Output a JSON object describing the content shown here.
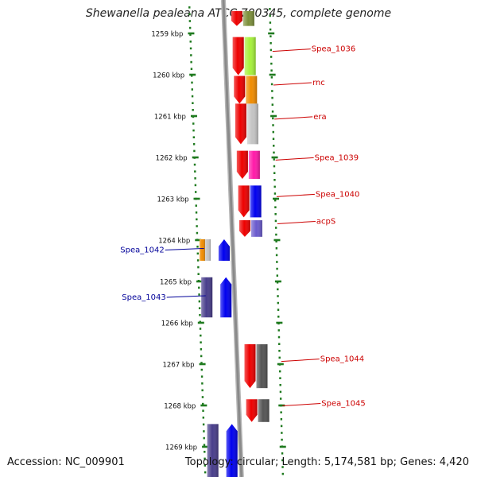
{
  "title": "Shewanella pealeana ATCC 700345, complete genome",
  "accession": "Accession: NC_009901",
  "topology": "Topology: circular; Length: 5,174,581 bp; Genes: 4,420",
  "axis": {
    "ticks": [
      "1259 kbp",
      "1260 kbp",
      "1261 kbp",
      "1262 kbp",
      "1263 kbp",
      "1264 kbp",
      "1265 kbp",
      "1266 kbp",
      "1267 kbp",
      "1268 kbp",
      "1269 kbp"
    ]
  },
  "colors": {
    "forward_label": "#cc0000",
    "reverse_label": "#000099",
    "tick": "#1f7a1f",
    "backbone": "#8a8a8a"
  },
  "genes_forward": [
    {
      "label": "",
      "start": 1258.46,
      "end": 1258.82,
      "color": "#7c8f3a"
    },
    {
      "label": "Spea_1036",
      "start": 1259.09,
      "end": 1260.01,
      "color": "#a6f23a"
    },
    {
      "label": "rnc",
      "start": 1260.03,
      "end": 1260.7,
      "color": "#f08c00"
    },
    {
      "label": "era",
      "start": 1260.7,
      "end": 1261.68,
      "color": "#c4c4c4"
    },
    {
      "label": "Spea_1039",
      "start": 1261.84,
      "end": 1262.52,
      "color": "#ff1aa8"
    },
    {
      "label": "Spea_1040",
      "start": 1262.68,
      "end": 1263.45,
      "color": "#0000ee"
    },
    {
      "label": "acpS",
      "start": 1263.52,
      "end": 1263.92,
      "color": "#6a5acd"
    },
    {
      "label": "Spea_1044",
      "start": 1266.52,
      "end": 1267.58,
      "color": "#555555"
    },
    {
      "label": "Spea_1045",
      "start": 1267.85,
      "end": 1268.4,
      "color": "#555555"
    }
  ],
  "genes_reverse": [
    {
      "label": "Spea_1042",
      "start": 1263.98,
      "end": 1264.5,
      "color": "#f08c00",
      "color2": "#c4c4c4"
    },
    {
      "label": "Spea_1043",
      "start": 1264.9,
      "end": 1265.87,
      "color": "#483d8b"
    },
    {
      "label": "",
      "start": 1268.45,
      "end": 1269.9,
      "color": "#483d8b"
    }
  ]
}
